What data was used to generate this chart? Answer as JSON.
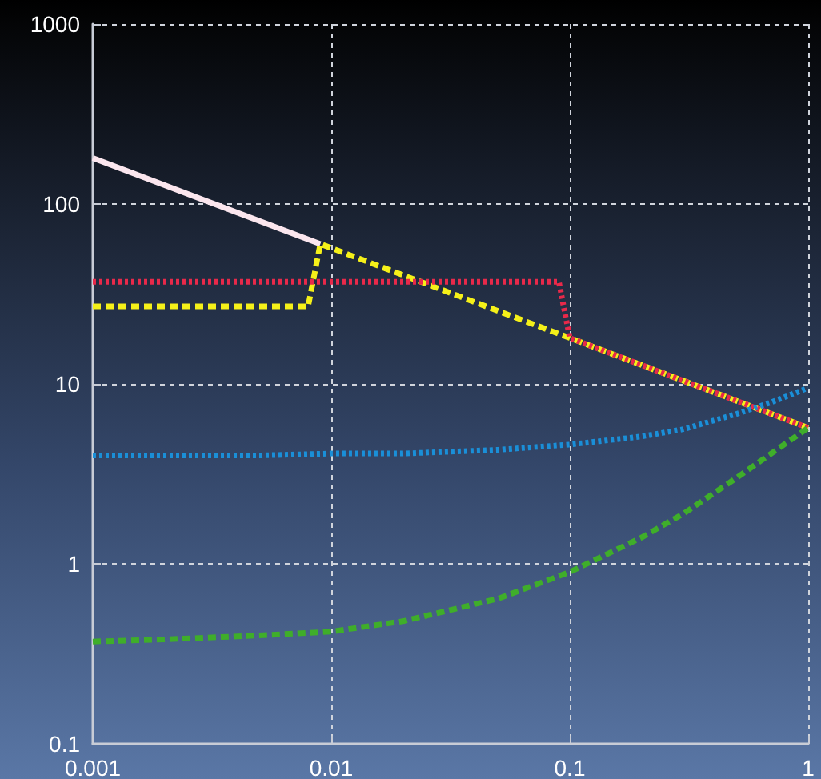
{
  "chart_data": {
    "type": "line",
    "log": "xy",
    "grid": true,
    "marker": "none",
    "xlim": [
      0.001,
      1
    ],
    "xticks": [
      0.001,
      0.01,
      0.1,
      1
    ],
    "ylim": [
      0.1,
      1000
    ],
    "yticks": [
      0.1,
      1,
      10,
      100,
      1000
    ],
    "series": [
      {
        "color": "#fbe6ee",
        "line_style": "solid",
        "x": [
          0.001,
          0.009
        ],
        "values": [
          180,
          60
        ]
      },
      {
        "color": "#f5f019",
        "line_style": "dashed",
        "x": [
          0.001,
          0.008,
          0.009,
          0.1,
          1
        ],
        "values": [
          27,
          27,
          60,
          18,
          5.7
        ]
      },
      {
        "color": "#e8294a",
        "line_style": "dotted",
        "x": [
          0.001,
          0.09,
          0.1,
          1
        ],
        "values": [
          37,
          37,
          18,
          5.7
        ]
      },
      {
        "color": "#1a8fd8",
        "line_style": "dotted",
        "x": [
          0.001,
          0.002,
          0.005,
          0.01,
          0.02,
          0.05,
          0.1,
          0.2,
          0.3,
          0.5,
          0.7,
          1
        ],
        "values": [
          4.0,
          4.0,
          4.0,
          4.1,
          4.1,
          4.3,
          4.6,
          5.1,
          5.6,
          6.8,
          7.9,
          9.5
        ]
      },
      {
        "color": "#3fae2a",
        "line_style": "dashed",
        "x": [
          0.001,
          0.002,
          0.005,
          0.01,
          0.02,
          0.05,
          0.1,
          0.2,
          0.3,
          0.5,
          0.7,
          1
        ],
        "values": [
          0.37,
          0.38,
          0.4,
          0.42,
          0.48,
          0.64,
          0.9,
          1.4,
          1.9,
          3.0,
          4.1,
          5.7
        ]
      }
    ]
  }
}
